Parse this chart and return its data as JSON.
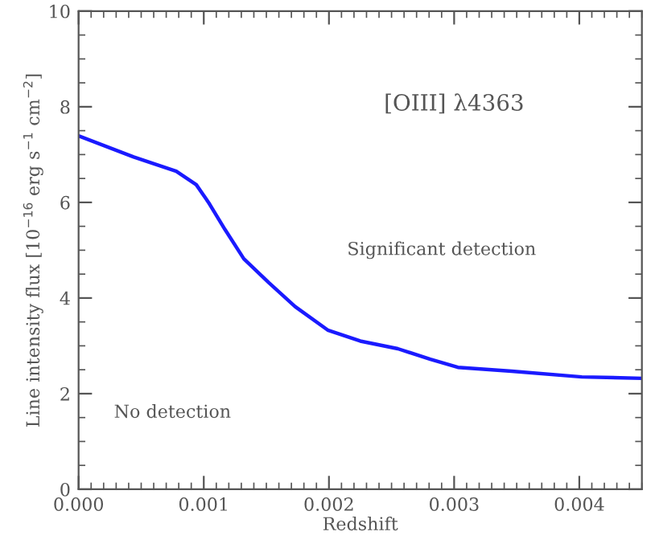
{
  "chart_data": {
    "type": "line",
    "xlabel": "Redshift",
    "ylabel": "Line intensity flux [10$^{−16}$ erg s$^{−1}$ cm$^{−2}$]",
    "annotations": [
      "[OIII] λ4363",
      "Significant detection",
      "No detection"
    ],
    "x": [
      0.0,
      0.00044,
      0.00078,
      0.00094,
      0.00104,
      0.00117,
      0.00132,
      0.00152,
      0.00173,
      0.00199,
      0.00225,
      0.00255,
      0.00281,
      0.00303,
      0.00346,
      0.00402,
      0.0045
    ],
    "series": [
      {
        "color": "#1a1aff",
        "values": [
          7.39,
          6.95,
          6.65,
          6.37,
          5.99,
          5.43,
          4.82,
          4.32,
          3.82,
          3.33,
          3.1,
          2.94,
          2.72,
          2.55,
          2.47,
          2.35,
          2.32
        ]
      }
    ],
    "xlim": [
      0.0,
      0.0045
    ],
    "ylim": [
      0,
      10
    ],
    "xticks": [
      {
        "value": 0.0,
        "label": "0.000"
      },
      {
        "value": 0.001,
        "label": "0.001"
      },
      {
        "value": 0.002,
        "label": "0.002"
      },
      {
        "value": 0.003,
        "label": "0.003"
      },
      {
        "value": 0.004,
        "label": "0.004"
      }
    ],
    "yticks": [
      0,
      2,
      4,
      6,
      8,
      10
    ],
    "grid": false,
    "marker": "none",
    "line_style": "solid"
  }
}
